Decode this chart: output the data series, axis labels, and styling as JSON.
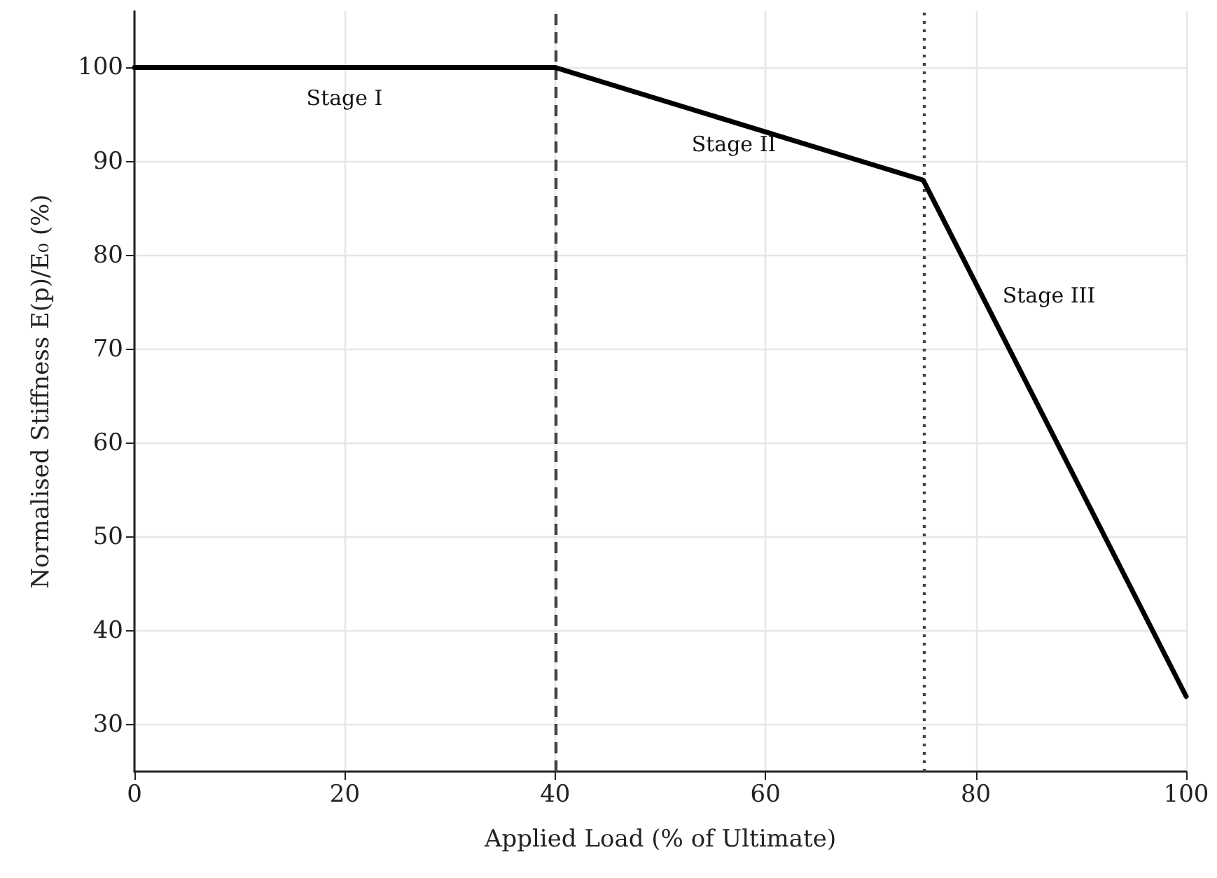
{
  "chart_data": {
    "type": "line",
    "xlabel": "Applied Load (% of Ultimate)",
    "ylabel": "Normalised Stiffness E(p)/E₀ (%)",
    "x": [
      0,
      40,
      75,
      100
    ],
    "series": [
      {
        "color": "#000000",
        "values": [
          100,
          100,
          88,
          33
        ]
      }
    ],
    "xlim": [
      0,
      100
    ],
    "xticks": [
      0,
      20,
      40,
      60,
      80,
      100
    ],
    "ylim": [
      25,
      106
    ],
    "yticks": [
      30,
      40,
      50,
      60,
      70,
      80,
      90,
      100
    ],
    "grid": true,
    "marker": "none",
    "line_style": "solid",
    "ref_lines": [
      {
        "axis": "x",
        "value": 40,
        "color": "#444444",
        "line_style": "dashed"
      },
      {
        "axis": "x",
        "value": 75,
        "color": "#444444",
        "line_style": "dotted"
      }
    ],
    "annotations": [
      "Stage I",
      "Stage II",
      "Stage III"
    ]
  }
}
